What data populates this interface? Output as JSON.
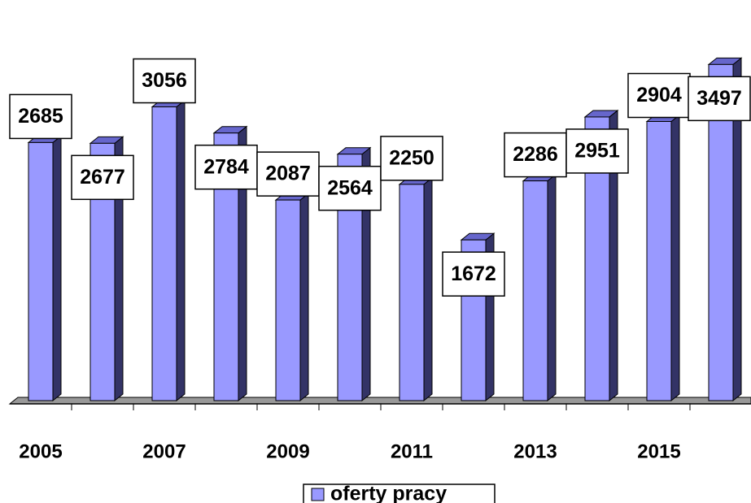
{
  "chart_data": {
    "type": "bar3d",
    "categories": [
      "2005",
      null,
      "2007",
      null,
      "2009",
      null,
      "2011",
      null,
      "2013",
      null,
      "2015",
      null
    ],
    "series": [
      {
        "name": "oferty pracy",
        "color": "#9999ff",
        "values": [
          2685,
          2677,
          3056,
          2784,
          2087,
          2564,
          2250,
          1672,
          2286,
          2951,
          2904,
          3497
        ]
      }
    ],
    "ylim": [
      0,
      3500
    ],
    "legend": "bottom"
  }
}
